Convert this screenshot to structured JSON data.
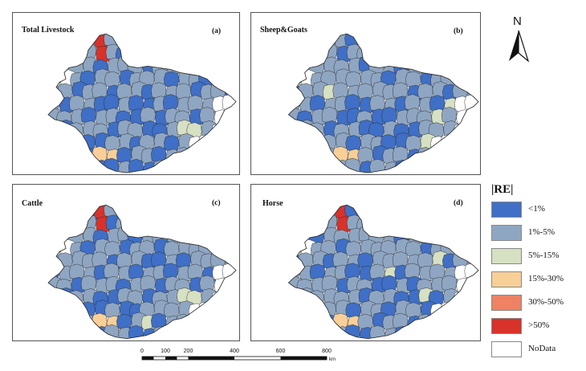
{
  "panels": [
    {
      "title": "Total  Livestock",
      "label": "(a)"
    },
    {
      "title": "Sheep&Goats",
      "label": "(b)"
    },
    {
      "title": "Cattle",
      "label": "(c)"
    },
    {
      "title": "Horse",
      "label": "(d)"
    }
  ],
  "north": {
    "letter": "N"
  },
  "legend": {
    "title": "|RE|",
    "items": [
      {
        "label": "<1%",
        "color": "#3f6fc6"
      },
      {
        "label": "1%-5%",
        "color": "#8fa6c2"
      },
      {
        "label": "5%-15%",
        "color": "#d6e0c2"
      },
      {
        "label": "15%-30%",
        "color": "#f8cf98"
      },
      {
        "label": "30%-50%",
        "color": "#ee8262"
      },
      {
        "label": ">50%",
        "color": "#d8322b"
      },
      {
        "label": "NoData",
        "color": "#ffffff"
      }
    ]
  },
  "scalebar": {
    "ticks": [
      "0",
      "100",
      "200",
      "400",
      "600",
      "800"
    ],
    "unit": "km"
  }
}
